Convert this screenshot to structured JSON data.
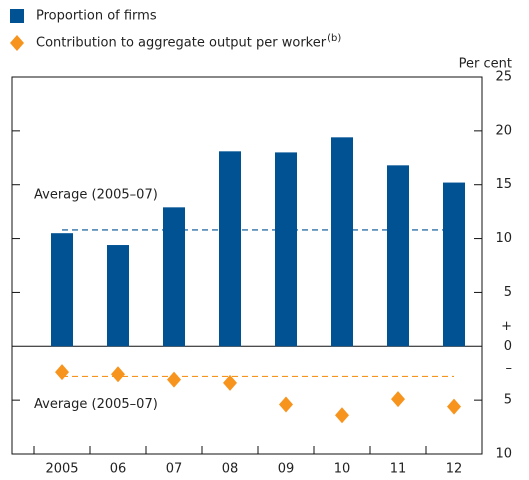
{
  "chart_data": {
    "type": "bar",
    "y_label": "Per cent",
    "categories": [
      "2005",
      "06",
      "07",
      "08",
      "09",
      "10",
      "11",
      "12"
    ],
    "series": [
      {
        "name": "Proportion of firms",
        "type": "bar",
        "color": "#005293",
        "values": [
          10.5,
          9.4,
          12.9,
          18.1,
          18.0,
          19.4,
          16.8,
          15.2
        ]
      },
      {
        "name": "Contribution to aggregate output per worker",
        "name_note": "(b)",
        "type": "scatter",
        "color": "#f7941d",
        "values": [
          -2.4,
          -2.6,
          -3.1,
          -3.4,
          -5.4,
          -6.4,
          -4.9,
          -5.6
        ]
      }
    ],
    "averages": [
      {
        "text": "Average (2005–07)",
        "value": 10.8,
        "color": "#005293"
      },
      {
        "text": "Average (2005–07)",
        "value": -2.8,
        "color": "#f7941d"
      }
    ],
    "sign_labels": [
      "+",
      "–"
    ],
    "ylim": [
      -10,
      25
    ],
    "yticks": [
      25,
      20,
      15,
      10,
      5,
      0,
      {
        "value": -5,
        "label": "5"
      },
      {
        "value": -10,
        "label": "10"
      }
    ]
  }
}
